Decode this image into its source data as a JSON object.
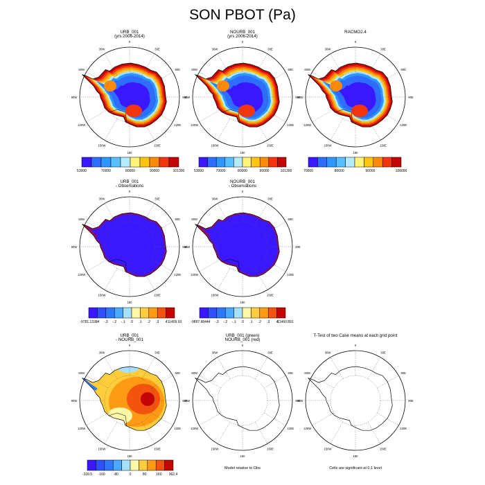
{
  "title": "SON PBOT (Pa)",
  "colors": {
    "levels": [
      "#3a18ff",
      "#2d6dff",
      "#2d97ff",
      "#58c0ff",
      "#b4ebff",
      "#fff37a",
      "#ffc40f",
      "#ff8a0a",
      "#f2350f",
      "#c40505"
    ],
    "diff": [
      "#3a18ff",
      "#3150ff",
      "#2d78ff",
      "#4aa8ff",
      "#a6e0ff",
      "#fff7a8",
      "#ffce3a",
      "#ff9a14",
      "#f4520f",
      "#c40505"
    ],
    "outline": "#000000"
  },
  "longitude_labels": [
    "0",
    "30E",
    "60E",
    "90E",
    "120E",
    "150E",
    "180",
    "150W",
    "120W",
    "90W",
    "60W",
    "30W"
  ],
  "chart_data": [
    {
      "id": "p1",
      "type": "heatmap",
      "title": "URB_001",
      "subtitle": "(yrs 2006-2014)",
      "fill": "field",
      "colorbar": [
        "53000",
        "70000",
        "80000",
        "90000",
        "101300"
      ]
    },
    {
      "id": "p2",
      "type": "heatmap",
      "title": "NOURB_001",
      "subtitle": "(yrs 2006-2014)",
      "fill": "field",
      "colorbar": [
        "53000",
        "70000",
        "80000",
        "90000",
        "101300"
      ]
    },
    {
      "id": "p3",
      "type": "heatmap",
      "title": "RACMO2.4",
      "subtitle": "",
      "fill": "field",
      "colorbar": [
        "70000",
        "80000",
        "90000",
        "100000"
      ]
    },
    {
      "id": "p4",
      "type": "heatmap",
      "title": "URB_001",
      "subtitle": "- Observations",
      "fill": "obsdiff",
      "colorbar": [
        "-9781.1328",
        "-.4",
        "-.3",
        "-.2",
        "-.1",
        ".0",
        ".1",
        ".2",
        ".3",
        ".4",
        "11409.93"
      ]
    },
    {
      "id": "p5",
      "type": "heatmap",
      "title": "NOURB_001",
      "subtitle": "- Observations",
      "fill": "obsdiff",
      "colorbar": [
        "-9867.9844",
        "-.4",
        "-.3",
        "-.2",
        "-.1",
        ".0",
        ".1",
        ".2",
        ".3",
        ".4",
        "11460.891"
      ]
    },
    {
      "id": "p7",
      "type": "heatmap",
      "title": "URB_001",
      "subtitle": "- NOURB_001",
      "fill": "casediff",
      "colorbar": [
        "-339.5",
        "-160",
        "-80",
        "0",
        "80",
        "160",
        "362.4"
      ]
    },
    {
      "id": "p8",
      "type": "heatmap",
      "title": "URB_001 (green)",
      "subtitle": "NOURB_001 (red)",
      "fill": "outline",
      "footer": "Model relative to Obs"
    },
    {
      "id": "p9",
      "type": "heatmap",
      "title": "T-Test of two Case means at each grid point",
      "subtitle": "",
      "fill": "outline",
      "footer": "Cells are significant at 0.1 level"
    }
  ]
}
